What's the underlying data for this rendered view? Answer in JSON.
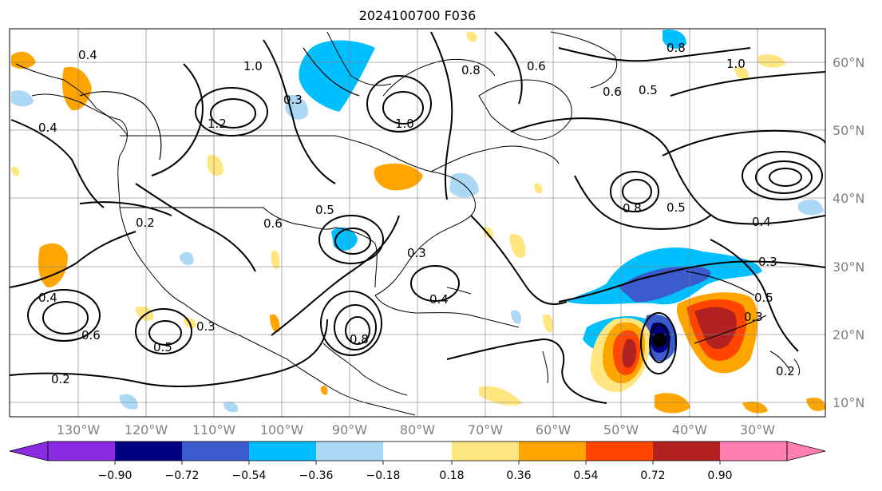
{
  "title": "2024100700 F036",
  "longitude_labels": [
    "130°W",
    "120°W",
    "110°W",
    "100°W",
    "90°W",
    "80°W",
    "70°W",
    "60°W",
    "50°W",
    "40°W",
    "30°W"
  ],
  "latitude_labels": [
    "60°N",
    "50°N",
    "40°N",
    "30°N",
    "20°N",
    "10°N"
  ],
  "colorbar": {
    "tick_labels": [
      "−0.90",
      "−0.72",
      "−0.54",
      "−0.36",
      "−0.18",
      "0.18",
      "0.36",
      "0.54",
      "0.72",
      "0.90"
    ],
    "colors": [
      "#8a2be2",
      "#000080",
      "#3b5bcc",
      "#00bfff",
      "#add8f5",
      "#ffffff",
      "#ffe680",
      "#ffa500",
      "#ff4500",
      "#b22222",
      "#ff80b0"
    ]
  },
  "contour_labels": [
    "0.4",
    "0.3",
    "1.0",
    "1.2",
    "0.6",
    "0.5",
    "0.3",
    "0.8",
    "1.0",
    "0.6",
    "0.5",
    "0.4",
    "0.3",
    "0.2",
    "0.8",
    "0.5",
    "0.4",
    "0.3",
    "0.2",
    "0.8",
    "0.5",
    "0.4",
    "0.3",
    "0.6",
    "0.2",
    "0.5",
    "0.4",
    "0.6",
    "0.8",
    "1.0"
  ],
  "colors": {
    "land_outline": "#000000",
    "grid": "#808080",
    "contour": "#000000",
    "tick_label": "#808080"
  }
}
